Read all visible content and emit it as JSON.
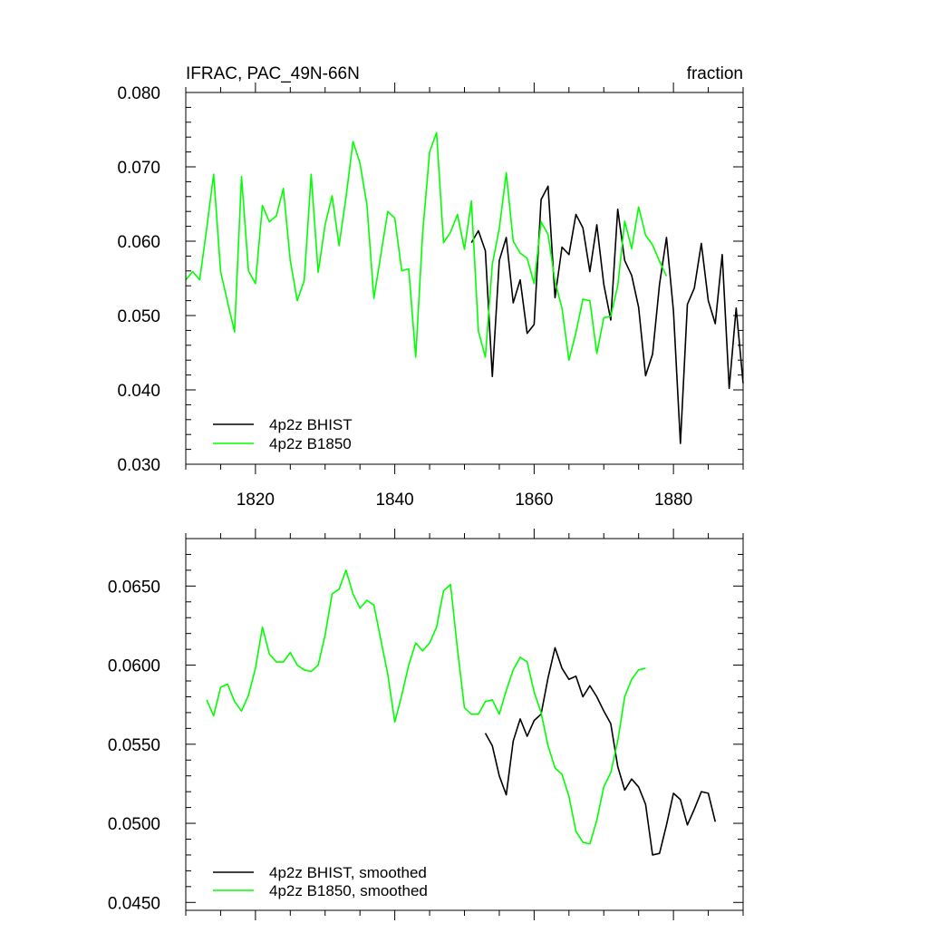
{
  "chart_data": [
    {
      "type": "line",
      "title": "IFRAC, PAC_49N-66N",
      "units": "fraction",
      "xlim": [
        1810,
        1890
      ],
      "ylim": [
        0.03,
        0.08
      ],
      "x_ticks": [
        "1820",
        "1840",
        "1860",
        "1880"
      ],
      "y_ticks": [
        "0.030",
        "0.040",
        "0.050",
        "0.060",
        "0.070",
        "0.080"
      ],
      "legend_position": "bottom-left",
      "series": [
        {
          "name": "4p2z BHIST",
          "color": "#000000",
          "x_start": 1851,
          "values": [
            0.0598,
            0.0614,
            0.0587,
            0.0418,
            0.0574,
            0.0605,
            0.0517,
            0.0548,
            0.0476,
            0.0488,
            0.0656,
            0.0674,
            0.0524,
            0.0592,
            0.0582,
            0.0636,
            0.0618,
            0.0559,
            0.0622,
            0.0542,
            0.0494,
            0.0643,
            0.0574,
            0.0554,
            0.0511,
            0.0419,
            0.0448,
            0.0542,
            0.0605,
            0.0506,
            0.0328,
            0.0515,
            0.0537,
            0.0597,
            0.052,
            0.0489,
            0.0582,
            0.0402,
            0.051,
            0.0409
          ]
        },
        {
          "name": "4p2z B1850",
          "color": "#00ff00",
          "x_start": 1810,
          "values": [
            0.0548,
            0.0559,
            0.0548,
            0.0617,
            0.069,
            0.0559,
            0.0518,
            0.0478,
            0.0687,
            0.056,
            0.0543,
            0.0648,
            0.0626,
            0.0634,
            0.0671,
            0.0574,
            0.052,
            0.0547,
            0.069,
            0.0558,
            0.0622,
            0.0661,
            0.0594,
            0.0659,
            0.0734,
            0.0705,
            0.0649,
            0.0523,
            0.0582,
            0.064,
            0.0631,
            0.056,
            0.0563,
            0.0444,
            0.0611,
            0.072,
            0.0746,
            0.0598,
            0.0612,
            0.0636,
            0.0589,
            0.0654,
            0.0479,
            0.0444,
            0.0569,
            0.0617,
            0.0692,
            0.06,
            0.0584,
            0.0577,
            0.0543,
            0.0626,
            0.0609,
            0.0546,
            0.051,
            0.044,
            0.0477,
            0.0522,
            0.052,
            0.0449,
            0.0497,
            0.0499,
            0.054,
            0.0627,
            0.059,
            0.0646,
            0.0608,
            0.0595,
            0.0573,
            0.0553
          ]
        }
      ]
    },
    {
      "type": "line",
      "title": "",
      "xlim": [
        1810,
        1890
      ],
      "ylim": [
        0.0445,
        0.068
      ],
      "x_ticks": [],
      "y_ticks": [
        "0.0450",
        "0.0500",
        "0.0550",
        "0.0600",
        "0.0650"
      ],
      "legend_position": "bottom-left",
      "series": [
        {
          "name": "4p2z BHIST, smoothed",
          "color": "#000000",
          "x_start": 1853,
          "values": [
            0.0557,
            0.0549,
            0.053,
            0.0518,
            0.0552,
            0.0566,
            0.0555,
            0.0565,
            0.0569,
            0.0592,
            0.0611,
            0.0598,
            0.0591,
            0.0593,
            0.058,
            0.0587,
            0.058,
            0.0571,
            0.0563,
            0.0536,
            0.0521,
            0.0528,
            0.0523,
            0.0512,
            0.048,
            0.0481,
            0.0499,
            0.0519,
            0.0515,
            0.0499,
            0.0509,
            0.052,
            0.0519,
            0.0501
          ]
        },
        {
          "name": "4p2z B1850, smoothed",
          "color": "#00ff00",
          "x_start": 1813,
          "values": [
            0.0578,
            0.0568,
            0.0586,
            0.0588,
            0.0577,
            0.0571,
            0.0581,
            0.0598,
            0.0624,
            0.0607,
            0.0602,
            0.0602,
            0.0608,
            0.06,
            0.0597,
            0.0596,
            0.06,
            0.0619,
            0.0645,
            0.0648,
            0.066,
            0.0645,
            0.0636,
            0.0641,
            0.0638,
            0.0616,
            0.0594,
            0.0564,
            0.0581,
            0.06,
            0.0614,
            0.0609,
            0.0614,
            0.0624,
            0.0647,
            0.0651,
            0.061,
            0.0573,
            0.0569,
            0.0569,
            0.0577,
            0.0578,
            0.0569,
            0.0584,
            0.0597,
            0.0605,
            0.0602,
            0.0583,
            0.057,
            0.0549,
            0.0535,
            0.0531,
            0.0517,
            0.0495,
            0.0488,
            0.0487,
            0.0502,
            0.0523,
            0.0532,
            0.0552,
            0.058,
            0.0591,
            0.0597,
            0.0598
          ]
        }
      ]
    }
  ]
}
